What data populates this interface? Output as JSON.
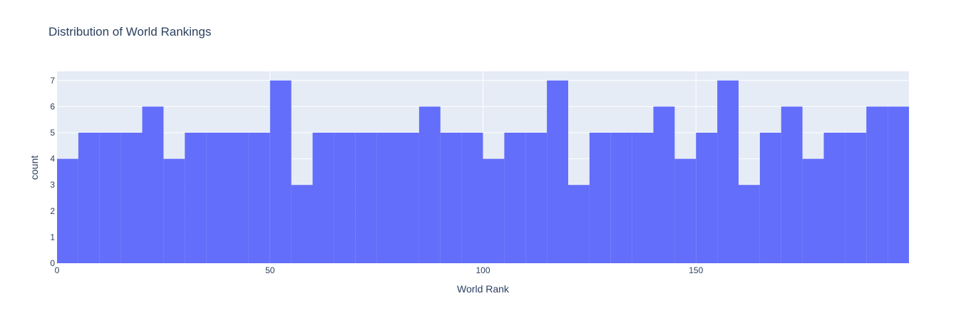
{
  "chart_data": {
    "type": "bar",
    "title": "Distribution of World Rankings",
    "xlabel": "World Rank",
    "ylabel": "count",
    "bin_width": 5,
    "x": [
      0,
      5,
      10,
      15,
      20,
      25,
      30,
      35,
      40,
      45,
      50,
      55,
      60,
      65,
      70,
      75,
      80,
      85,
      90,
      95,
      100,
      105,
      110,
      115,
      120,
      125,
      130,
      135,
      140,
      145,
      150,
      155,
      160,
      165,
      170,
      175,
      180,
      185,
      190,
      195
    ],
    "values": [
      4,
      5,
      5,
      5,
      6,
      4,
      5,
      5,
      5,
      5,
      7,
      3,
      5,
      5,
      5,
      5,
      5,
      6,
      5,
      5,
      4,
      5,
      5,
      7,
      3,
      5,
      5,
      5,
      6,
      4,
      5,
      7,
      3,
      5,
      6,
      4,
      5,
      5,
      6,
      6
    ],
    "xlim": [
      0,
      200
    ],
    "ylim": [
      0,
      7.35
    ],
    "xticks": [
      0,
      50,
      100,
      150
    ],
    "yticks": [
      0,
      1,
      2,
      3,
      4,
      5,
      6,
      7
    ],
    "grid": true,
    "colors": {
      "bar": "#636efa",
      "plot_bg": "#e5ecf6",
      "grid": "#ffffff",
      "text": "#2a3f5f"
    }
  }
}
